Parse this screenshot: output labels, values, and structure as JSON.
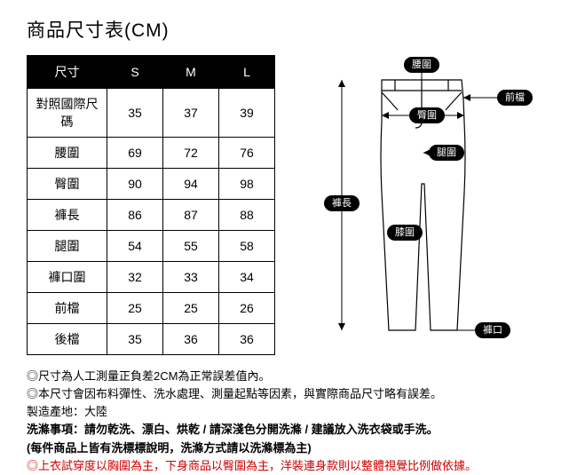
{
  "title": "商品尺寸表(CM)",
  "table": {
    "header": [
      "尺寸",
      "S",
      "M",
      "L"
    ],
    "rows": [
      {
        "label": "對照國際尺碼",
        "values": [
          "35",
          "37",
          "39"
        ]
      },
      {
        "label": "腰圍",
        "values": [
          "69",
          "72",
          "76"
        ]
      },
      {
        "label": "臀圍",
        "values": [
          "90",
          "94",
          "98"
        ]
      },
      {
        "label": "褲長",
        "values": [
          "86",
          "87",
          "88"
        ]
      },
      {
        "label": "腿圍",
        "values": [
          "54",
          "55",
          "58"
        ]
      },
      {
        "label": "褲口圍",
        "values": [
          "32",
          "33",
          "34"
        ]
      },
      {
        "label": "前檔",
        "values": [
          "25",
          "25",
          "26"
        ]
      },
      {
        "label": "後檔",
        "values": [
          "35",
          "36",
          "36"
        ]
      }
    ]
  },
  "diagram_labels": {
    "waist": "腰圍",
    "hip": "臀圍",
    "thigh": "腿圍",
    "knee": "膝圍",
    "hem": "褲口",
    "length": "褲長",
    "rise": "前檔"
  },
  "notes": {
    "line1": "◎尺寸為人工測量正負差2CM為正常誤差值內。",
    "line2": "◎本尺寸會因布料彈性、洗水處理、測量起點等因素，與實際商品尺寸略有誤差。",
    "line3": "製造產地：大陸",
    "line4": "洗滌事項：請勿乾洗、漂白、烘乾 / 請深淺色分開洗滌 / 建議放入洗衣袋或手洗。",
    "line5": "(每件商品上皆有洗標標說明，洗滌方式請以洗滌標為主)",
    "line6": "◎上衣試穿度以胸圍為主，下身商品以臀圍為主，洋裝連身款則以整體視覺比例做依據。"
  },
  "colors": {
    "text": "#000000",
    "bg": "#ffffff",
    "header_bg": "#000000",
    "header_text": "#ffffff",
    "red": "#cc0000"
  }
}
